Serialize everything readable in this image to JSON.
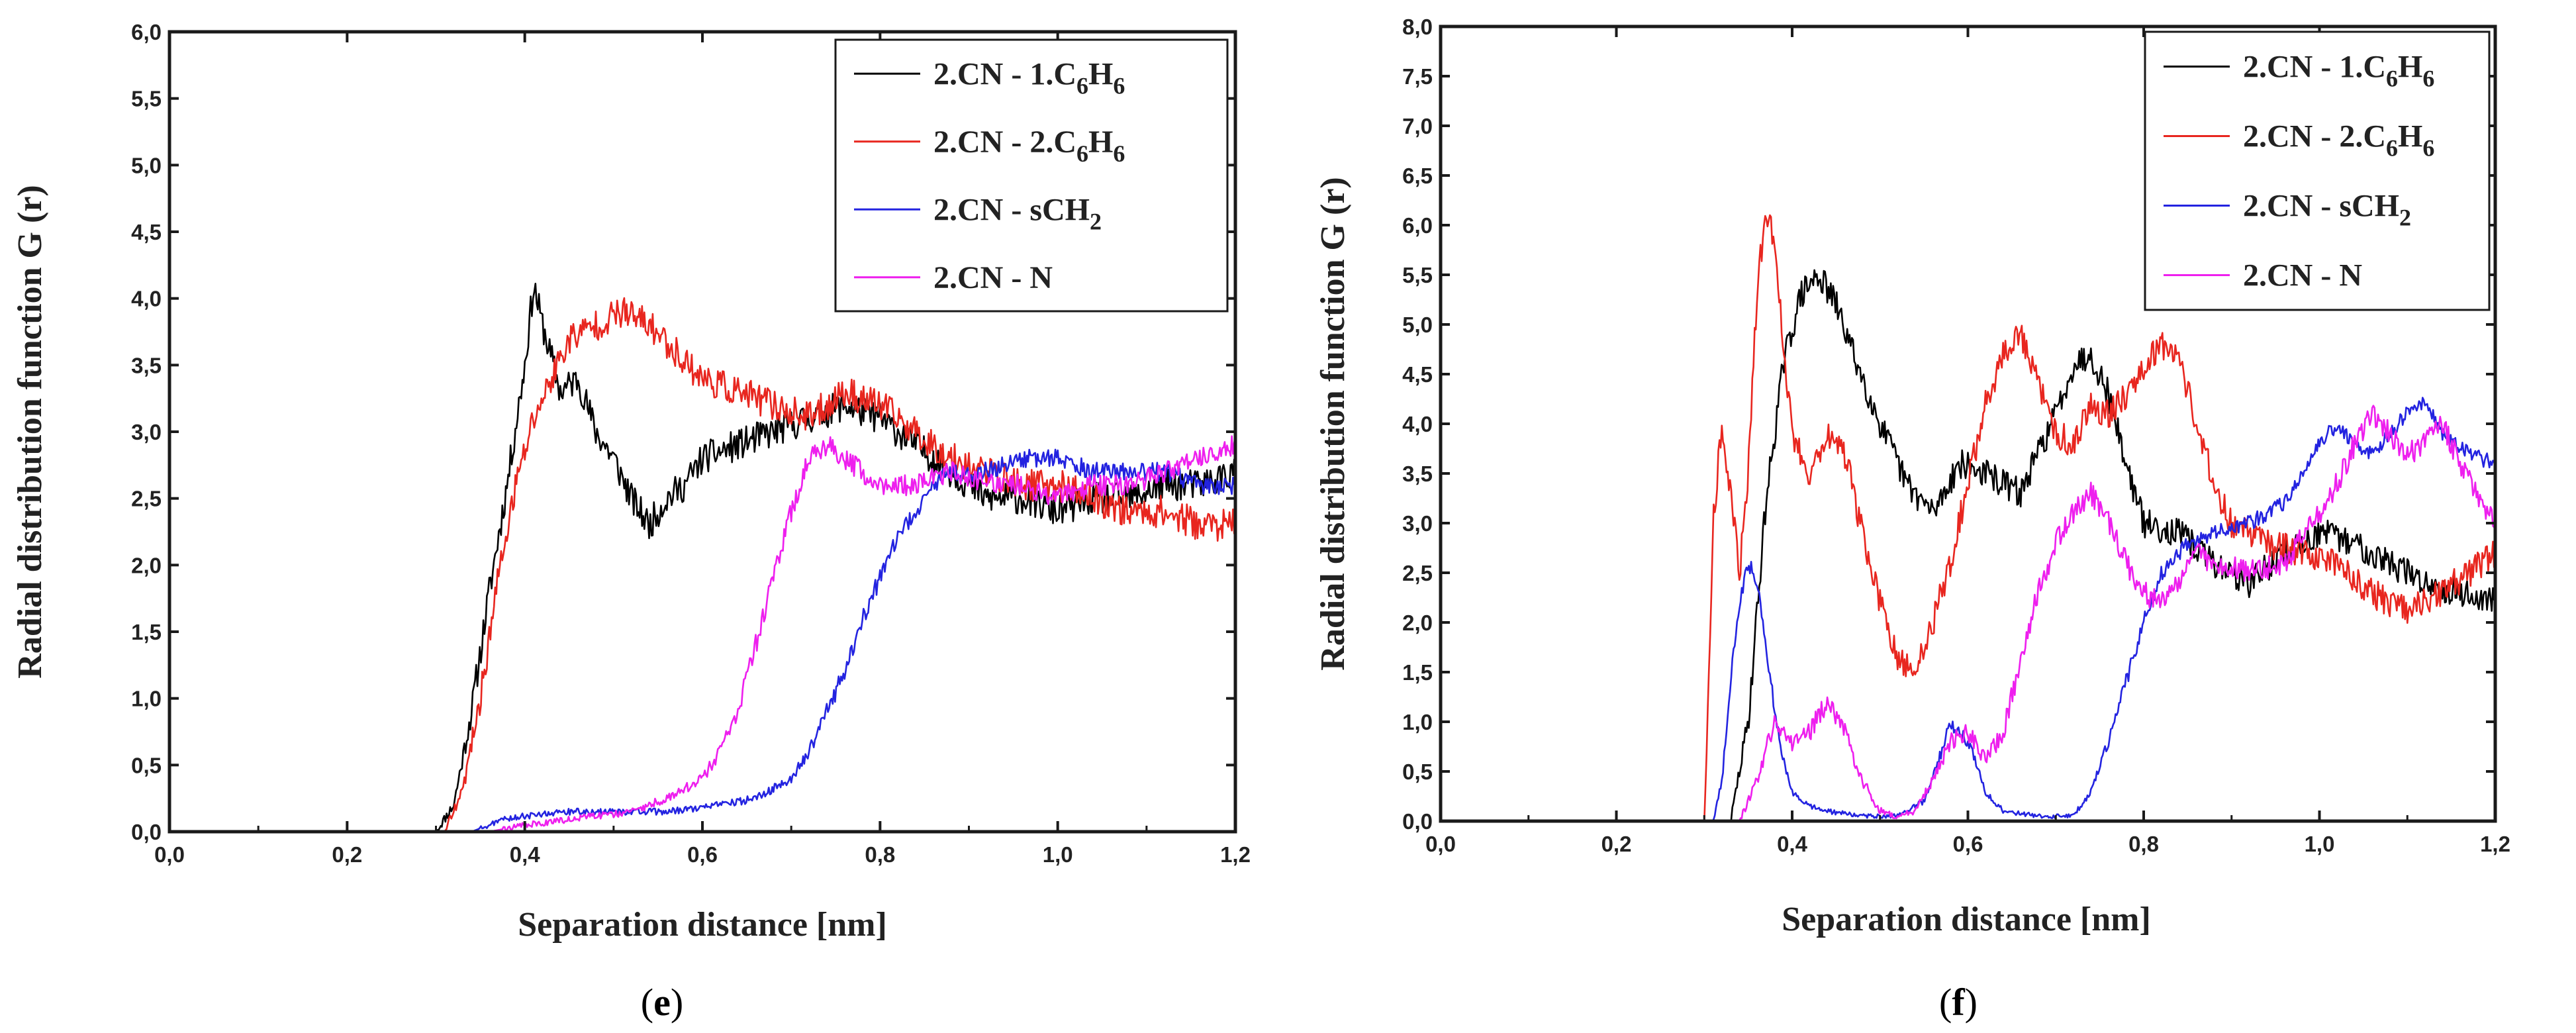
{
  "chart_data": [
    {
      "type": "line",
      "panel_label": "e",
      "xlabel": "Separation distance [nm]",
      "ylabel": "Radial distribution function G (r)",
      "xlim": [
        0,
        1.2
      ],
      "ylim": [
        0,
        6.0
      ],
      "x_ticks": [
        "0,0",
        "0,2",
        "0,4",
        "0,6",
        "0,8",
        "1,0",
        "1,2"
      ],
      "y_ticks": [
        "0,0",
        "0,5",
        "1,0",
        "1,5",
        "2,0",
        "2,5",
        "3,0",
        "3,5",
        "4,0",
        "4,5",
        "5,0",
        "5,5",
        "6,0"
      ],
      "legend_position": "top-right",
      "series": [
        {
          "name": "2.CN - 1.C6H6",
          "label": {
            "base": "2.CN - 1.C",
            "sub1": "6",
            "mid": "H",
            "sub2": "6"
          },
          "color": "#000000",
          "x": [
            0.0,
            0.3,
            0.32,
            0.34,
            0.36,
            0.38,
            0.4,
            0.41,
            0.42,
            0.44,
            0.46,
            0.48,
            0.5,
            0.52,
            0.54,
            0.56,
            0.58,
            0.6,
            0.64,
            0.68,
            0.72,
            0.76,
            0.8,
            0.84,
            0.88,
            0.92,
            0.96,
            1.0,
            1.04,
            1.08,
            1.12,
            1.16,
            1.2
          ],
          "y": [
            0.0,
            0.0,
            0.2,
            0.9,
            1.8,
            2.6,
            3.5,
            4.1,
            3.8,
            3.3,
            3.4,
            3.0,
            2.8,
            2.5,
            2.3,
            2.5,
            2.6,
            2.8,
            2.9,
            3.0,
            3.1,
            3.2,
            3.1,
            2.9,
            2.7,
            2.5,
            2.5,
            2.4,
            2.5,
            2.5,
            2.6,
            2.6,
            2.7
          ],
          "noise": 0.12
        },
        {
          "name": "2.CN - 2.C6H6",
          "label": {
            "base": "2.CN - 2.C",
            "sub1": "6",
            "mid": "H",
            "sub2": "6"
          },
          "color": "#e8261f",
          "x": [
            0.0,
            0.31,
            0.33,
            0.35,
            0.37,
            0.39,
            0.41,
            0.43,
            0.45,
            0.48,
            0.51,
            0.54,
            0.57,
            0.6,
            0.64,
            0.68,
            0.72,
            0.76,
            0.8,
            0.84,
            0.88,
            0.92,
            0.96,
            1.0,
            1.04,
            1.08,
            1.12,
            1.16,
            1.2
          ],
          "y": [
            0.0,
            0.0,
            0.3,
            1.0,
            1.9,
            2.6,
            3.1,
            3.4,
            3.7,
            3.8,
            3.9,
            3.8,
            3.6,
            3.4,
            3.3,
            3.2,
            3.1,
            3.3,
            3.2,
            3.0,
            2.8,
            2.7,
            2.6,
            2.6,
            2.5,
            2.4,
            2.4,
            2.3,
            2.3
          ],
          "noise": 0.12
        },
        {
          "name": "2.CN - sCH2",
          "label": {
            "base": "2.CN - sCH",
            "sub1": "2",
            "mid": "",
            "sub2": ""
          },
          "color": "#2323e0",
          "x": [
            0.0,
            0.34,
            0.38,
            0.44,
            0.5,
            0.56,
            0.62,
            0.66,
            0.7,
            0.72,
            0.74,
            0.76,
            0.78,
            0.8,
            0.82,
            0.84,
            0.86,
            0.88,
            0.92,
            0.96,
            1.0,
            1.04,
            1.08,
            1.12,
            1.16,
            1.2
          ],
          "y": [
            0.0,
            0.0,
            0.1,
            0.15,
            0.15,
            0.15,
            0.2,
            0.25,
            0.4,
            0.6,
            0.9,
            1.2,
            1.6,
            1.9,
            2.2,
            2.4,
            2.6,
            2.7,
            2.7,
            2.8,
            2.8,
            2.7,
            2.7,
            2.7,
            2.6,
            2.6
          ],
          "noise": 0.07
        },
        {
          "name": "2.CN - N",
          "label": {
            "base": "2.CN - N",
            "sub1": "",
            "mid": "",
            "sub2": ""
          },
          "color": "#ee1fee",
          "x": [
            0.0,
            0.36,
            0.4,
            0.46,
            0.52,
            0.56,
            0.6,
            0.62,
            0.64,
            0.66,
            0.68,
            0.7,
            0.72,
            0.74,
            0.76,
            0.8,
            0.84,
            0.88,
            0.92,
            0.96,
            1.0,
            1.04,
            1.08,
            1.12,
            1.16,
            1.2
          ],
          "y": [
            0.0,
            0.0,
            0.05,
            0.1,
            0.15,
            0.25,
            0.4,
            0.6,
            0.9,
            1.4,
            1.9,
            2.4,
            2.8,
            2.9,
            2.8,
            2.6,
            2.6,
            2.7,
            2.6,
            2.6,
            2.5,
            2.6,
            2.6,
            2.7,
            2.8,
            2.9
          ],
          "noise": 0.08
        }
      ]
    },
    {
      "type": "line",
      "panel_label": "f",
      "xlabel": "Separation distance [nm]",
      "ylabel": "Radial distribution function G (r)",
      "xlim": [
        0,
        1.2
      ],
      "ylim": [
        0,
        8.0
      ],
      "x_ticks": [
        "0,0",
        "0,2",
        "0,4",
        "0,6",
        "0,8",
        "1,0",
        "1,2"
      ],
      "y_ticks": [
        "0,0",
        "0,5",
        "1,0",
        "1,5",
        "2,0",
        "2,5",
        "3,0",
        "3,5",
        "4,0",
        "4,5",
        "5,0",
        "5,5",
        "6,0",
        "6,5",
        "7,0",
        "7,5",
        "8,0"
      ],
      "legend_position": "top-right",
      "series": [
        {
          "name": "2.CN - 1.C6H6",
          "label": {
            "base": "2.CN - 1.C",
            "sub1": "6",
            "mid": "H",
            "sub2": "6"
          },
          "color": "#000000",
          "x": [
            0.0,
            0.33,
            0.35,
            0.37,
            0.39,
            0.41,
            0.43,
            0.45,
            0.47,
            0.5,
            0.53,
            0.56,
            0.59,
            0.62,
            0.66,
            0.7,
            0.72,
            0.74,
            0.76,
            0.78,
            0.8,
            0.84,
            0.88,
            0.92,
            0.96,
            1.0,
            1.04,
            1.08,
            1.12,
            1.16,
            1.2
          ],
          "y": [
            0.0,
            0.0,
            1.0,
            3.2,
            4.6,
            5.3,
            5.5,
            5.2,
            4.7,
            4.0,
            3.4,
            3.1,
            3.6,
            3.5,
            3.3,
            4.1,
            4.6,
            4.7,
            4.3,
            3.6,
            3.0,
            2.9,
            2.6,
            2.4,
            2.7,
            2.9,
            2.8,
            2.6,
            2.4,
            2.3,
            2.2
          ],
          "noise": 0.15
        },
        {
          "name": "2.CN - 2.C6H6",
          "label": {
            "base": "2.CN - 2.C",
            "sub1": "6",
            "mid": "H",
            "sub2": "6"
          },
          "color": "#e8261f",
          "x": [
            0.0,
            0.3,
            0.31,
            0.32,
            0.33,
            0.34,
            0.35,
            0.36,
            0.37,
            0.38,
            0.39,
            0.4,
            0.42,
            0.44,
            0.46,
            0.48,
            0.5,
            0.52,
            0.54,
            0.56,
            0.58,
            0.6,
            0.62,
            0.64,
            0.66,
            0.68,
            0.7,
            0.72,
            0.74,
            0.76,
            0.78,
            0.8,
            0.82,
            0.84,
            0.86,
            0.88,
            0.9,
            0.94,
            0.98,
            1.02,
            1.06,
            1.1,
            1.14,
            1.17,
            1.2
          ],
          "y": [
            0.0,
            0.0,
            3.0,
            4.0,
            3.3,
            2.5,
            3.5,
            5.3,
            6.2,
            5.8,
            4.8,
            3.9,
            3.5,
            3.9,
            3.7,
            2.9,
            2.2,
            1.6,
            1.5,
            2.0,
            2.6,
            3.4,
            4.2,
            4.7,
            4.9,
            4.4,
            3.9,
            3.8,
            4.2,
            4.1,
            4.3,
            4.6,
            4.8,
            4.7,
            4.0,
            3.4,
            3.0,
            2.8,
            2.7,
            2.6,
            2.3,
            2.1,
            2.3,
            2.5,
            2.7
          ],
          "noise": 0.15
        },
        {
          "name": "2.CN - sCH2",
          "label": {
            "base": "2.CN - sCH",
            "sub1": "2",
            "mid": "",
            "sub2": ""
          },
          "color": "#2323e0",
          "x": [
            0.0,
            0.31,
            0.32,
            0.33,
            0.34,
            0.35,
            0.36,
            0.37,
            0.38,
            0.39,
            0.4,
            0.42,
            0.44,
            0.48,
            0.52,
            0.55,
            0.57,
            0.58,
            0.6,
            0.62,
            0.64,
            0.68,
            0.72,
            0.74,
            0.76,
            0.78,
            0.8,
            0.82,
            0.85,
            0.88,
            0.92,
            0.96,
            1.0,
            1.02,
            1.04,
            1.06,
            1.08,
            1.1,
            1.12,
            1.14,
            1.17,
            1.2
          ],
          "y": [
            0.0,
            0.0,
            0.4,
            1.4,
            2.2,
            2.6,
            2.4,
            1.8,
            1.1,
            0.6,
            0.3,
            0.15,
            0.1,
            0.05,
            0.05,
            0.2,
            0.7,
            1.0,
            0.8,
            0.3,
            0.1,
            0.05,
            0.05,
            0.3,
            0.8,
            1.4,
            2.0,
            2.5,
            2.8,
            2.9,
            3.0,
            3.2,
            3.8,
            4.0,
            3.8,
            3.7,
            3.9,
            4.1,
            4.2,
            3.9,
            3.7,
            3.6
          ],
          "noise": 0.08
        },
        {
          "name": "2.CN - N",
          "label": {
            "base": "2.CN - N",
            "sub1": "",
            "mid": "",
            "sub2": ""
          },
          "color": "#ee1fee",
          "x": [
            0.0,
            0.34,
            0.36,
            0.38,
            0.4,
            0.42,
            0.44,
            0.46,
            0.48,
            0.5,
            0.52,
            0.54,
            0.56,
            0.58,
            0.6,
            0.62,
            0.64,
            0.66,
            0.68,
            0.7,
            0.72,
            0.74,
            0.76,
            0.78,
            0.8,
            0.82,
            0.84,
            0.86,
            0.88,
            0.92,
            0.96,
            1.0,
            1.02,
            1.04,
            1.06,
            1.08,
            1.1,
            1.12,
            1.14,
            1.16,
            1.18,
            1.2
          ],
          "y": [
            0.0,
            0.0,
            0.4,
            1.0,
            0.8,
            0.9,
            1.2,
            0.9,
            0.4,
            0.1,
            0.05,
            0.1,
            0.4,
            0.8,
            0.9,
            0.6,
            0.9,
            1.6,
            2.3,
            2.8,
            3.1,
            3.3,
            3.0,
            2.6,
            2.3,
            2.2,
            2.4,
            2.7,
            2.6,
            2.5,
            2.6,
            3.1,
            3.4,
            3.8,
            4.1,
            3.9,
            3.7,
            3.8,
            4.0,
            3.6,
            3.3,
            3.0
          ],
          "noise": 0.12
        }
      ]
    }
  ]
}
